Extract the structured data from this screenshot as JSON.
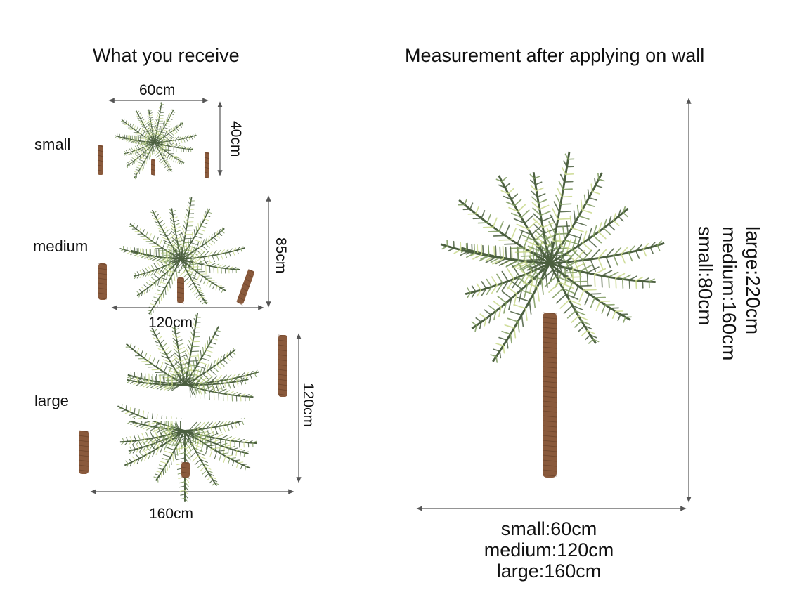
{
  "left": {
    "heading": "What you receive",
    "sizes": {
      "small": {
        "label": "small",
        "width": "60cm",
        "height": "40cm"
      },
      "medium": {
        "label": "medium",
        "width": "120cm",
        "height": "85cm"
      },
      "large": {
        "label": "large",
        "width": "160cm",
        "height": "120cm"
      }
    }
  },
  "right": {
    "heading": "Measurement after applying on wall",
    "height_lines": [
      "large:220cm",
      "medium:160cm",
      "small:80cm"
    ],
    "width_lines": [
      "small:60cm",
      "medium:120cm",
      "large:160cm"
    ]
  },
  "colors": {
    "frond_dark": "#4b5f3f",
    "frond_mid": "#7d9a5e",
    "frond_light": "#c9d98c",
    "trunk": "#8a5a3c",
    "arrow": "#555555"
  },
  "icons": [
    "palm-tree",
    "trunk",
    "dimension-arrow"
  ]
}
